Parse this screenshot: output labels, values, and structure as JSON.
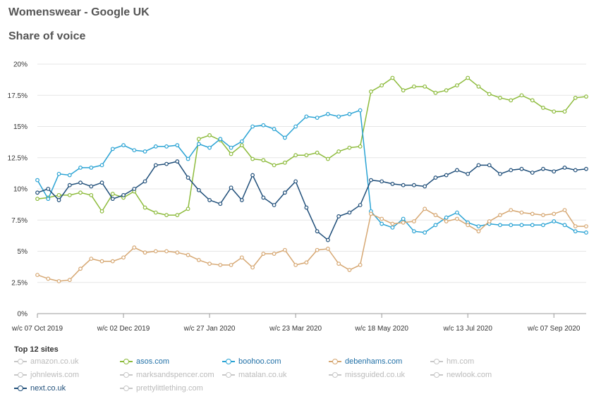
{
  "header": {
    "title": "Womenswear - Google UK",
    "subtitle": "Share of voice"
  },
  "legend": {
    "title": "Top 12 sites",
    "items": [
      {
        "name": "amazon.co.uk",
        "color": "#c8c8c8",
        "active": false
      },
      {
        "name": "asos.com",
        "color": "#8dbb3c",
        "active": true
      },
      {
        "name": "boohoo.com",
        "color": "#2aa3d4",
        "active": true
      },
      {
        "name": "debenhams.com",
        "color": "#d6a772",
        "active": true
      },
      {
        "name": "hm.com",
        "color": "#c8c8c8",
        "active": false
      },
      {
        "name": "johnlewis.com",
        "color": "#c8c8c8",
        "active": false
      },
      {
        "name": "marksandspencer.com",
        "color": "#c8c8c8",
        "active": false
      },
      {
        "name": "matalan.co.uk",
        "color": "#c8c8c8",
        "active": false
      },
      {
        "name": "missguided.co.uk",
        "color": "#c8c8c8",
        "active": false
      },
      {
        "name": "newlook.com",
        "color": "#c8c8c8",
        "active": false
      },
      {
        "name": "next.co.uk",
        "color": "#1f4e79",
        "active": true
      },
      {
        "name": "prettylittlething.com",
        "color": "#c8c8c8",
        "active": false
      }
    ]
  },
  "chart_data": {
    "type": "line",
    "x": [
      "w/c 07 Oct 2019",
      "w/c 14 Oct 2019",
      "w/c 21 Oct 2019",
      "w/c 28 Oct 2019",
      "w/c 04 Nov 2019",
      "w/c 11 Nov 2019",
      "w/c 18 Nov 2019",
      "w/c 25 Nov 2019",
      "w/c 02 Dec 2019",
      "w/c 09 Dec 2019",
      "w/c 16 Dec 2019",
      "w/c 23 Dec 2019",
      "w/c 30 Dec 2019",
      "w/c 06 Jan 2020",
      "w/c 13 Jan 2020",
      "w/c 20 Jan 2020",
      "w/c 27 Jan 2020",
      "w/c 03 Feb 2020",
      "w/c 10 Feb 2020",
      "w/c 17 Feb 2020",
      "w/c 24 Feb 2020",
      "w/c 02 Mar 2020",
      "w/c 09 Mar 2020",
      "w/c 16 Mar 2020",
      "w/c 23 Mar 2020",
      "w/c 30 Mar 2020",
      "w/c 06 Apr 2020",
      "w/c 13 Apr 2020",
      "w/c 20 Apr 2020",
      "w/c 27 Apr 2020",
      "w/c 04 May 2020",
      "w/c 11 May 2020",
      "w/c 18 May 2020",
      "w/c 25 May 2020",
      "w/c 01 Jun 2020",
      "w/c 08 Jun 2020",
      "w/c 15 Jun 2020",
      "w/c 22 Jun 2020",
      "w/c 29 Jun 2020",
      "w/c 06 Jul 2020",
      "w/c 13 Jul 2020",
      "w/c 20 Jul 2020",
      "w/c 27 Jul 2020",
      "w/c 03 Aug 2020",
      "w/c 10 Aug 2020",
      "w/c 17 Aug 2020",
      "w/c 24 Aug 2020",
      "w/c 31 Aug 2020",
      "w/c 07 Sep 2020",
      "w/c 14 Sep 2020",
      "w/c 21 Sep 2020",
      "w/c 28 Sep 2020"
    ],
    "x_tick_labels": [
      "w/c 07 Oct 2019",
      "w/c 02 Dec 2019",
      "w/c 27 Jan 2020",
      "w/c 23 Mar 2020",
      "w/c 18 May 2020",
      "w/c 13 Jul 2020",
      "w/c 07 Sep 2020"
    ],
    "y_ticks": [
      "0%",
      "2.5%",
      "5%",
      "7.5%",
      "10%",
      "12.5%",
      "15%",
      "17.5%",
      "20%"
    ],
    "ylim": [
      0,
      20
    ],
    "grid": true,
    "series": [
      {
        "name": "asos.com",
        "color": "#8dbb3c",
        "values": [
          9.2,
          9.3,
          9.5,
          9.5,
          9.7,
          9.5,
          8.2,
          9.6,
          9.3,
          9.8,
          8.5,
          8.1,
          7.9,
          7.9,
          8.4,
          14.0,
          14.3,
          13.9,
          12.8,
          13.5,
          12.4,
          12.3,
          11.9,
          12.1,
          12.7,
          12.7,
          12.9,
          12.4,
          13.0,
          13.3,
          13.4,
          17.8,
          18.3,
          18.9,
          17.9,
          18.2,
          18.2,
          17.7,
          17.9,
          18.3,
          18.9,
          18.2,
          17.6,
          17.3,
          17.1,
          17.5,
          17.1,
          16.5,
          16.2,
          16.2,
          17.3,
          17.4
        ]
      },
      {
        "name": "boohoo.com",
        "color": "#2aa3d4",
        "values": [
          10.7,
          9.2,
          11.2,
          11.1,
          11.7,
          11.7,
          11.9,
          13.2,
          13.5,
          13.1,
          13.0,
          13.4,
          13.4,
          13.5,
          12.4,
          13.6,
          13.3,
          14.0,
          13.3,
          13.8,
          15.0,
          15.1,
          14.8,
          14.1,
          15.0,
          15.8,
          15.7,
          16.0,
          15.8,
          16.0,
          16.3,
          8.2,
          7.2,
          6.9,
          7.6,
          6.6,
          6.5,
          7.1,
          7.7,
          8.1,
          7.3,
          7.0,
          7.2,
          7.1,
          7.1,
          7.1,
          7.1,
          7.1,
          7.4,
          7.1,
          6.6,
          6.5
        ]
      },
      {
        "name": "debenhams.com",
        "color": "#d6a772",
        "values": [
          3.1,
          2.8,
          2.6,
          2.7,
          3.6,
          4.4,
          4.2,
          4.2,
          4.5,
          5.3,
          4.9,
          5.0,
          5.0,
          4.9,
          4.7,
          4.3,
          4.0,
          3.9,
          3.9,
          4.5,
          3.7,
          4.8,
          4.8,
          5.1,
          3.9,
          4.1,
          5.1,
          5.2,
          4.0,
          3.5,
          3.9,
          8.0,
          7.6,
          7.2,
          7.3,
          7.4,
          8.4,
          7.9,
          7.4,
          7.6,
          7.1,
          6.6,
          7.4,
          7.9,
          8.3,
          8.1,
          8.0,
          7.9,
          8.0,
          8.3,
          7.0,
          7.0
        ]
      },
      {
        "name": "next.co.uk",
        "color": "#1f4e79",
        "values": [
          9.7,
          10.0,
          9.1,
          10.3,
          10.5,
          10.2,
          10.5,
          9.2,
          9.5,
          10.0,
          10.6,
          11.9,
          12.0,
          12.2,
          10.9,
          9.9,
          9.1,
          8.8,
          10.1,
          9.1,
          11.1,
          9.3,
          8.7,
          9.7,
          10.6,
          8.5,
          6.6,
          5.9,
          7.8,
          8.1,
          8.7,
          10.7,
          10.6,
          10.4,
          10.3,
          10.3,
          10.2,
          10.9,
          11.1,
          11.5,
          11.2,
          11.9,
          11.9,
          11.2,
          11.5,
          11.6,
          11.3,
          11.6,
          11.4,
          11.7,
          11.5,
          11.6
        ]
      }
    ]
  }
}
